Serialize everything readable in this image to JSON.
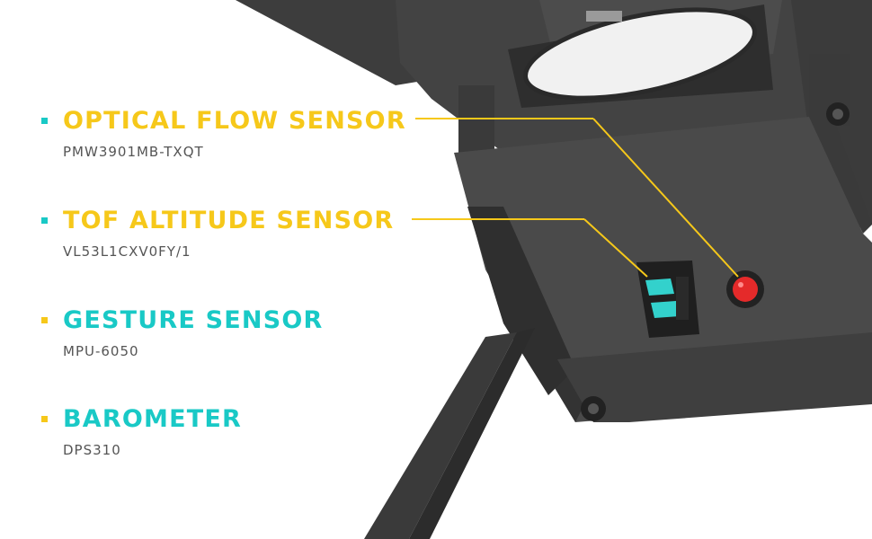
{
  "colors": {
    "yellow": "#f6c81a",
    "teal": "#19c9c6",
    "device_dark": "#3a3a3a",
    "device_mid": "#4a4a4a",
    "device_light": "#5a5a5a",
    "led_red": "#e52a2a",
    "tof_window": "#33d1cc"
  },
  "sensors": [
    {
      "title": "OPTICAL FLOW SENSOR",
      "model": "PMW3901MB-TXQT",
      "color": "#f6c81a",
      "has_callout": true
    },
    {
      "title": "TOF ALTITUDE SENSOR",
      "model": "VL53L1CXV0FY/1",
      "color": "#f6c81a",
      "has_callout": true
    },
    {
      "title": "GESTURE SENSOR",
      "model": "MPU-6050",
      "color": "#19c9c6",
      "has_callout": false
    },
    {
      "title": "BAROMETER",
      "model": "DPS310",
      "color": "#19c9c6",
      "has_callout": false
    }
  ]
}
